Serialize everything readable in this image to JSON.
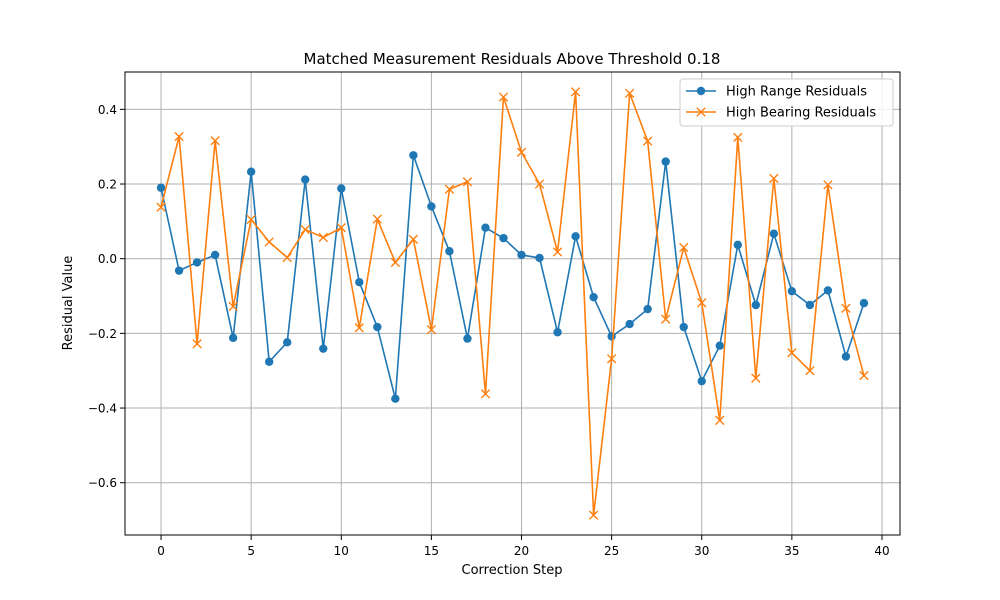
{
  "chart_data": {
    "type": "line",
    "title": "Matched Measurement Residuals Above Threshold 0.18",
    "xlabel": "Correction Step",
    "ylabel": "Residual Value",
    "xlim": [
      -2,
      41
    ],
    "ylim": [
      -0.74,
      0.5
    ],
    "xticks": [
      0,
      5,
      10,
      15,
      20,
      25,
      30,
      35,
      40
    ],
    "xtick_labels": [
      "0",
      "5",
      "10",
      "15",
      "20",
      "25",
      "30",
      "35",
      "40"
    ],
    "yticks": [
      -0.6,
      -0.4,
      -0.2,
      0.0,
      0.2,
      0.4
    ],
    "ytick_labels": [
      "−0.6",
      "−0.4",
      "−0.2",
      "0.0",
      "0.2",
      "0.4"
    ],
    "grid": true,
    "legend_position": "top-right",
    "series": [
      {
        "name": "High Range Residuals",
        "color": "#1f77b4",
        "marker": "circle",
        "x": [
          0,
          1,
          2,
          3,
          4,
          5,
          6,
          7,
          8,
          9,
          10,
          11,
          12,
          13,
          14,
          15,
          16,
          17,
          18,
          19,
          20,
          21,
          22,
          23,
          24,
          25,
          26,
          27,
          28,
          29,
          30,
          31,
          32,
          33,
          34,
          35,
          36,
          37,
          38,
          39
        ],
        "values": [
          0.19,
          -0.032,
          -0.01,
          0.01,
          -0.212,
          0.233,
          -0.276,
          -0.224,
          0.212,
          -0.241,
          0.188,
          -0.063,
          -0.183,
          -0.375,
          0.277,
          0.14,
          0.02,
          -0.214,
          0.083,
          0.055,
          0.01,
          0.002,
          -0.197,
          0.06,
          -0.103,
          -0.208,
          -0.175,
          -0.135,
          0.26,
          -0.183,
          -0.328,
          -0.233,
          0.037,
          -0.124,
          0.067,
          -0.087,
          -0.124,
          -0.085,
          -0.262,
          -0.119
        ]
      },
      {
        "name": "High Bearing Residuals",
        "color": "#ff7f0e",
        "marker": "x",
        "x": [
          0,
          1,
          2,
          3,
          4,
          5,
          6,
          7,
          8,
          9,
          10,
          11,
          12,
          13,
          14,
          15,
          16,
          17,
          18,
          19,
          20,
          21,
          22,
          23,
          24,
          25,
          26,
          27,
          28,
          29,
          30,
          31,
          32,
          33,
          34,
          35,
          36,
          37,
          38,
          39
        ],
        "values": [
          0.138,
          0.327,
          -0.228,
          0.316,
          -0.128,
          0.105,
          0.045,
          0.003,
          0.078,
          0.057,
          0.083,
          -0.185,
          0.106,
          -0.01,
          0.052,
          -0.19,
          0.186,
          0.206,
          -0.362,
          0.433,
          0.285,
          0.2,
          0.018,
          0.447,
          -0.687,
          -0.268,
          0.443,
          0.315,
          -0.162,
          0.03,
          -0.118,
          -0.433,
          0.325,
          -0.32,
          0.215,
          -0.252,
          -0.3,
          0.198,
          -0.133,
          -0.313
        ]
      }
    ]
  }
}
